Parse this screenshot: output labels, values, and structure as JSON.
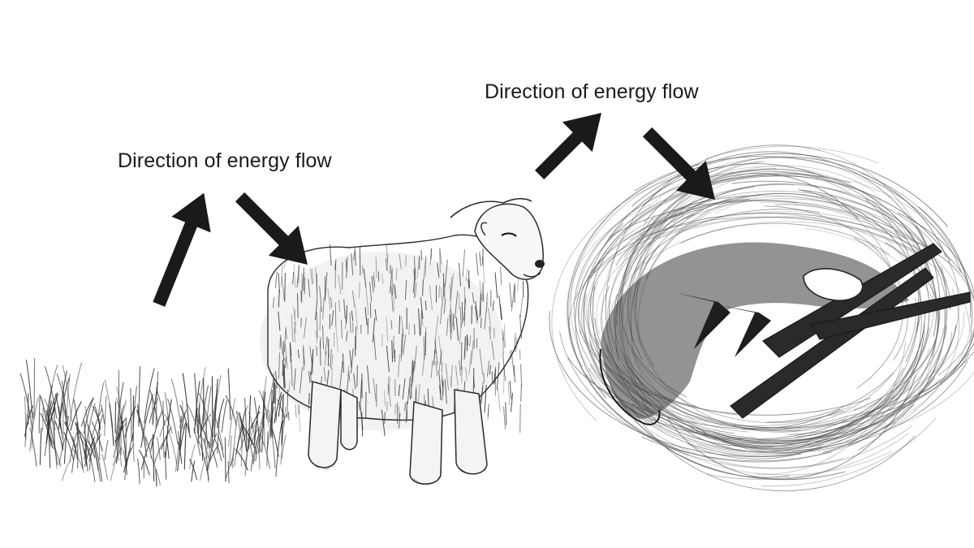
{
  "labels": {
    "flow_label_1": "Direction of energy flow",
    "flow_label_2": "Direction of energy flow"
  },
  "organisms": {
    "producer": "grass",
    "primary_consumer": "sheep",
    "decomposer_scene": "decomposing carcass"
  },
  "icons": {
    "arrow_up_1": "arrow-up-right-icon",
    "arrow_down_1": "arrow-down-right-icon",
    "arrow_up_2": "arrow-up-right-icon",
    "arrow_down_2": "arrow-down-right-icon"
  },
  "colors": {
    "ink": "#1a1a1a",
    "background": "#ffffff",
    "pencil": "#3a3a3a"
  }
}
